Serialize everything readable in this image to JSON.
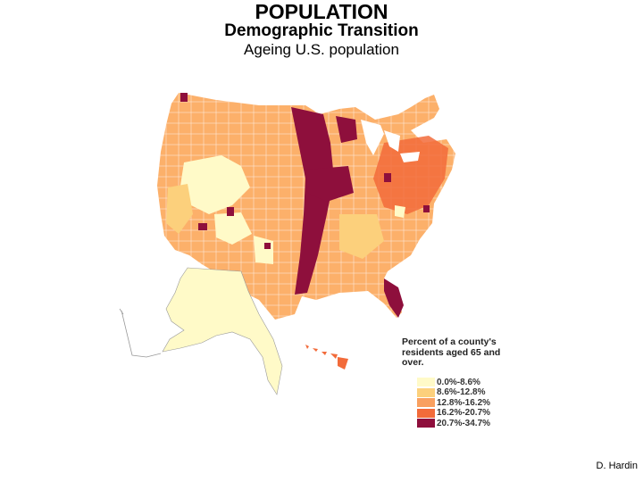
{
  "header": {
    "title": "POPULATION",
    "subtitle": "Demographic Transition",
    "subtitle2": "Ageing U.S. population"
  },
  "legend": {
    "title": "Percent of a county's residents aged 65 and over.",
    "classes": [
      {
        "label": "0.0%-8.6%",
        "color": "#fffac8"
      },
      {
        "label": "8.6%-12.8%",
        "color": "#fcd07c"
      },
      {
        "label": "12.8%-16.2%",
        "color": "#f9a060"
      },
      {
        "label": "16.2%-20.7%",
        "color": "#f26b3a"
      },
      {
        "label": "20.7%-34.7%",
        "color": "#8e0f3c"
      }
    ]
  },
  "map": {
    "regions": [
      "contiguous-us",
      "alaska",
      "hawaii"
    ],
    "region_colors": {
      "plains-belt": "#8e0f3c",
      "florida": "#8e0f3c",
      "west-low-share": "#fffac8",
      "alaska": "#fffac8",
      "hawaii": "#f26b3a"
    }
  },
  "credit": "D. Hardin"
}
